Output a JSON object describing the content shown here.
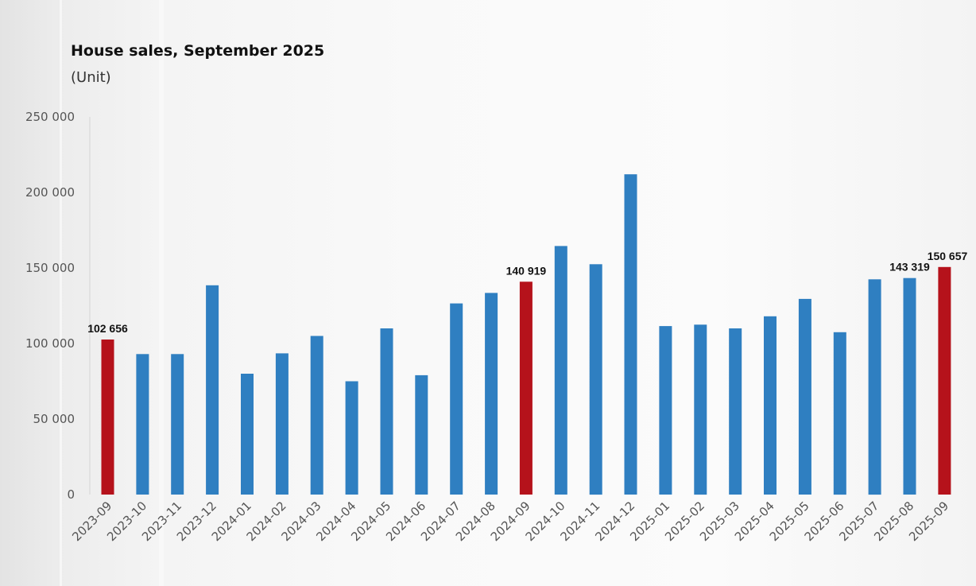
{
  "title": "House sales, September 2025",
  "unit": "(Unit)",
  "colors": {
    "normal": "#2f7fc1",
    "highlight": "#b5121b"
  },
  "chart_data": {
    "type": "bar",
    "title": "House sales, September 2025",
    "ylabel": "(Unit)",
    "xlabel": "",
    "ylim": [
      0,
      250000
    ],
    "yticks": [
      0,
      50000,
      100000,
      150000,
      200000,
      250000
    ],
    "ytick_labels": [
      "0",
      "50 000",
      "100 000",
      "150 000",
      "200 000",
      "250 000"
    ],
    "grid": false,
    "categories": [
      "2023-09",
      "2023-10",
      "2023-11",
      "2023-12",
      "2024-01",
      "2024-02",
      "2024-03",
      "2024-04",
      "2024-05",
      "2024-06",
      "2024-07",
      "2024-08",
      "2024-09",
      "2024-10",
      "2024-11",
      "2024-12",
      "2025-01",
      "2025-02",
      "2025-03",
      "2025-04",
      "2025-05",
      "2025-06",
      "2025-07",
      "2025-08",
      "2025-09"
    ],
    "values": [
      102656,
      93000,
      93000,
      138500,
      80000,
      93500,
      105000,
      75000,
      110000,
      79000,
      126500,
      133500,
      140919,
      164500,
      152500,
      212000,
      111500,
      112500,
      110000,
      118000,
      129500,
      107500,
      142500,
      143319,
      150657
    ],
    "highlighted": [
      "2023-09",
      "2024-09",
      "2025-09"
    ],
    "data_labels": [
      {
        "category": "2023-09",
        "text": "102 656"
      },
      {
        "category": "2024-09",
        "text": "140 919"
      },
      {
        "category": "2025-08",
        "text": "143 319"
      },
      {
        "category": "2025-09",
        "text": "150 657"
      }
    ]
  }
}
